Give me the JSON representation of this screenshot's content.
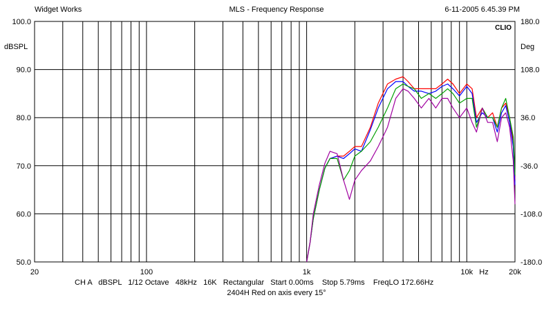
{
  "header": {
    "left": "Widget Works",
    "center": "MLS - Frequency Response",
    "right": "6-11-2005 6.45.39 PM"
  },
  "footer": {
    "settings": "CH A   dBSPL   1/12 Octave   48kHz   16K   Rectangular   Start 0.00ms    Stop 5.79ms    FreqLO 172.66Hz",
    "caption": "2404H Red on axis every 15°"
  },
  "chart_data": {
    "type": "line",
    "watermark": "CLIO",
    "x_scale": "log",
    "xlim": [
      20,
      20000
    ],
    "x_ticks": [
      {
        "value": 20,
        "label": "20"
      },
      {
        "value": 100,
        "label": "100"
      },
      {
        "value": 1000,
        "label": "1k"
      },
      {
        "value": 10000,
        "label": "10k"
      },
      {
        "value": 20000,
        "label": "20k"
      }
    ],
    "x_unit_label": "Hz",
    "ylabel": "dBSPL",
    "ylim": [
      50,
      100
    ],
    "y_ticks": [
      "100.0",
      "90.0",
      "80.0",
      "70.0",
      "60.0",
      "50.0"
    ],
    "y2label": "Deg",
    "y2lim": [
      -180,
      180
    ],
    "y2_ticks": [
      "180.0",
      "108.0",
      "36.0",
      "-36.0",
      "-108.0",
      "-180.0"
    ],
    "grid": true,
    "colors": {
      "grid": "#000000",
      "background": "#ffffff"
    },
    "series": [
      {
        "color": "#ff0000",
        "x": [
          1000,
          1050,
          1100,
          1200,
          1300,
          1400,
          1550,
          1700,
          1850,
          2000,
          2200,
          2500,
          2800,
          3200,
          3600,
          4000,
          4300,
          4700,
          5200,
          5800,
          6400,
          7000,
          7600,
          8200,
          9000,
          10000,
          10800,
          11500,
          12500,
          13500,
          14500,
          15500,
          16500,
          17500,
          18500,
          19500,
          20000
        ],
        "y": [
          50,
          54,
          59,
          65,
          69.5,
          71.5,
          72,
          72,
          73,
          74,
          74,
          78,
          83,
          87,
          88,
          88.5,
          87.5,
          86,
          86,
          86,
          86,
          87,
          88,
          87,
          85,
          87,
          86,
          80,
          82,
          80,
          81,
          78,
          82,
          83,
          80,
          75,
          67
        ]
      },
      {
        "color": "#0000ff",
        "x": [
          1000,
          1050,
          1100,
          1200,
          1300,
          1400,
          1550,
          1700,
          1850,
          2000,
          2200,
          2500,
          2800,
          3200,
          3600,
          4000,
          4300,
          4700,
          5200,
          5800,
          6400,
          7000,
          7600,
          8200,
          9000,
          10000,
          10800,
          11500,
          12500,
          13500,
          14500,
          15500,
          16500,
          17500,
          18500,
          19500,
          20000
        ],
        "y": [
          50,
          54,
          59,
          65,
          69.5,
          71.5,
          72,
          71.5,
          72.5,
          73.5,
          73,
          77.5,
          82,
          86,
          87.5,
          87.5,
          86.5,
          85.5,
          85.5,
          85,
          85.5,
          86.5,
          87,
          86,
          84.5,
          86.5,
          85,
          79,
          81,
          80,
          80,
          77,
          81,
          82.5,
          79,
          74,
          66
        ]
      },
      {
        "color": "#00a000",
        "x": [
          1000,
          1050,
          1100,
          1200,
          1300,
          1400,
          1550,
          1700,
          1850,
          2000,
          2200,
          2500,
          2800,
          3200,
          3600,
          4000,
          4300,
          4700,
          5200,
          5800,
          6400,
          7000,
          7600,
          8200,
          9000,
          10000,
          10800,
          11500,
          12500,
          13500,
          14500,
          15500,
          16500,
          17500,
          18500,
          19500,
          20000
        ],
        "y": [
          50,
          54,
          59,
          65,
          69.5,
          71.5,
          71.5,
          67,
          69,
          72,
          73,
          75,
          78,
          82,
          86,
          87,
          86.5,
          86,
          84,
          85,
          84,
          85,
          86,
          85,
          83,
          84,
          84,
          78,
          82,
          80,
          80,
          78,
          82,
          84,
          80,
          76,
          68
        ]
      },
      {
        "color": "#a000a0",
        "x": [
          1000,
          1050,
          1100,
          1200,
          1300,
          1400,
          1550,
          1700,
          1850,
          2000,
          2200,
          2500,
          2800,
          3200,
          3600,
          4000,
          4300,
          4700,
          5200,
          5800,
          6400,
          7000,
          7600,
          8200,
          9000,
          10000,
          10800,
          11500,
          12500,
          13500,
          14500,
          15500,
          16500,
          17500,
          18500,
          19500,
          20000
        ],
        "y": [
          50,
          54,
          60,
          66,
          70.5,
          73,
          72.5,
          67,
          63,
          67,
          69,
          71,
          74,
          78,
          84,
          86,
          85.5,
          84,
          82,
          84,
          82,
          84,
          84,
          82,
          80,
          82,
          79,
          77,
          82,
          79,
          79,
          75,
          80,
          81,
          78,
          71,
          62
        ]
      }
    ]
  }
}
